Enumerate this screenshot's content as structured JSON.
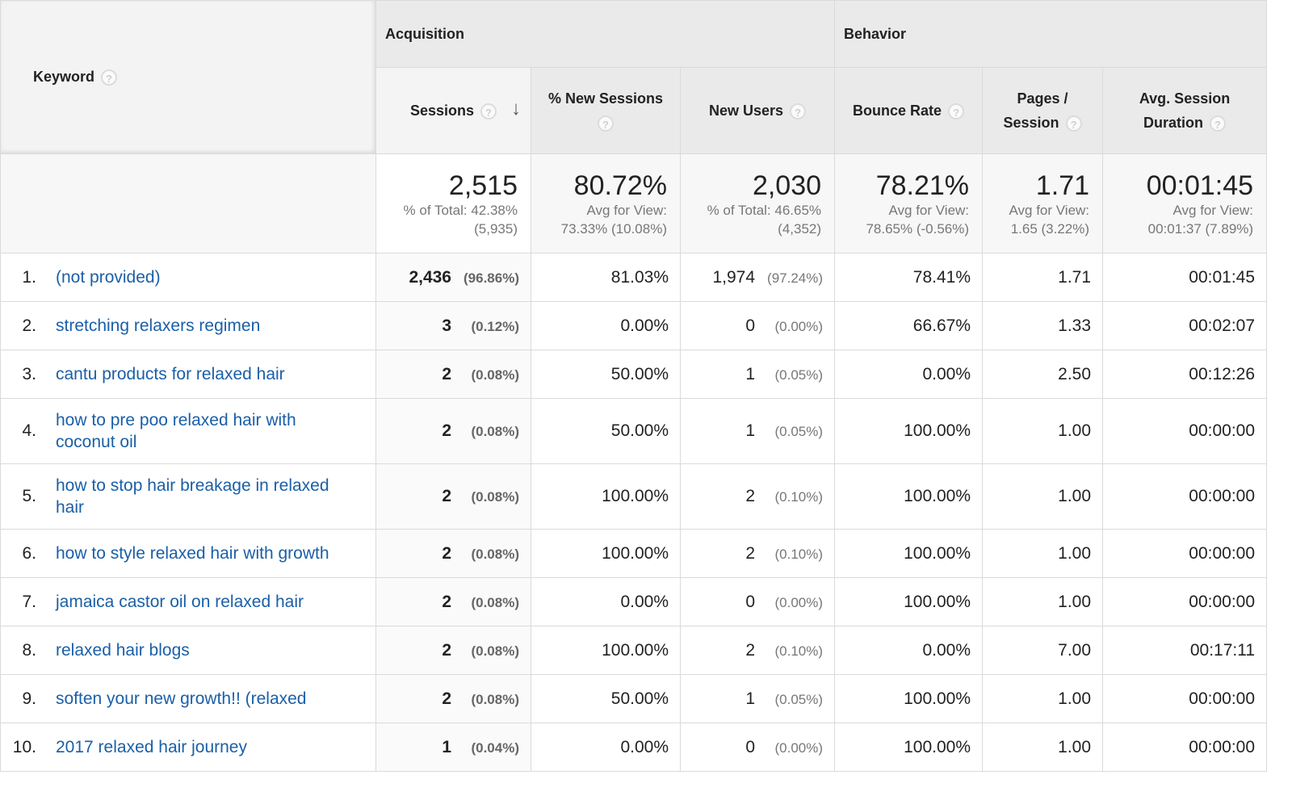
{
  "headers": {
    "keyword": "Keyword",
    "acquisition": "Acquisition",
    "behavior": "Behavior",
    "sessions": "Sessions",
    "new_sessions": "% New Sessions",
    "new_users": "New Users",
    "bounce_rate": "Bounce Rate",
    "pages_session_line1": "Pages /",
    "pages_session_line2": "Session",
    "avg_duration_line1": "Avg. Session",
    "avg_duration_line2": "Duration",
    "help_glyph": "?",
    "sort_glyph": "↓"
  },
  "totals": {
    "sessions": {
      "value": "2,515",
      "sub1": "% of Total: 42.38%",
      "sub2": "(5,935)"
    },
    "new_sessions": {
      "value": "80.72%",
      "sub1": "Avg for View:",
      "sub2": "73.33% (10.08%)"
    },
    "new_users": {
      "value": "2,030",
      "sub1": "% of Total: 46.65%",
      "sub2": "(4,352)"
    },
    "bounce_rate": {
      "value": "78.21%",
      "sub1": "Avg for View:",
      "sub2": "78.65% (-0.56%)"
    },
    "pages_session": {
      "value": "1.71",
      "sub1": "Avg for View:",
      "sub2": "1.65 (3.22%)"
    },
    "avg_duration": {
      "value": "00:01:45",
      "sub1": "Avg for View:",
      "sub2": "00:01:37 (7.89%)"
    }
  },
  "rows": [
    {
      "num": "1.",
      "keyword": "(not provided)",
      "sessions": "2,436",
      "sessions_pct": "(96.86%)",
      "new_sessions": "81.03%",
      "new_users": "1,974",
      "new_users_pct": "(97.24%)",
      "bounce_rate": "78.41%",
      "pages_session": "1.71",
      "avg_duration": "00:01:45"
    },
    {
      "num": "2.",
      "keyword": "stretching relaxers regimen",
      "sessions": "3",
      "sessions_pct": "(0.12%)",
      "new_sessions": "0.00%",
      "new_users": "0",
      "new_users_pct": "(0.00%)",
      "bounce_rate": "66.67%",
      "pages_session": "1.33",
      "avg_duration": "00:02:07"
    },
    {
      "num": "3.",
      "keyword": "cantu products for relaxed hair",
      "sessions": "2",
      "sessions_pct": "(0.08%)",
      "new_sessions": "50.00%",
      "new_users": "1",
      "new_users_pct": "(0.05%)",
      "bounce_rate": "0.00%",
      "pages_session": "2.50",
      "avg_duration": "00:12:26"
    },
    {
      "num": "4.",
      "keyword": "how to pre poo relaxed hair with coconut oil",
      "sessions": "2",
      "sessions_pct": "(0.08%)",
      "new_sessions": "50.00%",
      "new_users": "1",
      "new_users_pct": "(0.05%)",
      "bounce_rate": "100.00%",
      "pages_session": "1.00",
      "avg_duration": "00:00:00"
    },
    {
      "num": "5.",
      "keyword": "how to stop hair breakage in relaxed hair",
      "sessions": "2",
      "sessions_pct": "(0.08%)",
      "new_sessions": "100.00%",
      "new_users": "2",
      "new_users_pct": "(0.10%)",
      "bounce_rate": "100.00%",
      "pages_session": "1.00",
      "avg_duration": "00:00:00"
    },
    {
      "num": "6.",
      "keyword": "how to style relaxed hair with growth",
      "sessions": "2",
      "sessions_pct": "(0.08%)",
      "new_sessions": "100.00%",
      "new_users": "2",
      "new_users_pct": "(0.10%)",
      "bounce_rate": "100.00%",
      "pages_session": "1.00",
      "avg_duration": "00:00:00"
    },
    {
      "num": "7.",
      "keyword": "jamaica castor oil on relaxed hair",
      "sessions": "2",
      "sessions_pct": "(0.08%)",
      "new_sessions": "0.00%",
      "new_users": "0",
      "new_users_pct": "(0.00%)",
      "bounce_rate": "100.00%",
      "pages_session": "1.00",
      "avg_duration": "00:00:00"
    },
    {
      "num": "8.",
      "keyword": "relaxed hair blogs",
      "sessions": "2",
      "sessions_pct": "(0.08%)",
      "new_sessions": "100.00%",
      "new_users": "2",
      "new_users_pct": "(0.10%)",
      "bounce_rate": "0.00%",
      "pages_session": "7.00",
      "avg_duration": "00:17:11"
    },
    {
      "num": "9.",
      "keyword": "soften your new growth!! (relaxed",
      "sessions": "2",
      "sessions_pct": "(0.08%)",
      "new_sessions": "50.00%",
      "new_users": "1",
      "new_users_pct": "(0.05%)",
      "bounce_rate": "100.00%",
      "pages_session": "1.00",
      "avg_duration": "00:00:00"
    },
    {
      "num": "10.",
      "keyword": "2017 relaxed hair journey",
      "sessions": "1",
      "sessions_pct": "(0.04%)",
      "new_sessions": "0.00%",
      "new_users": "0",
      "new_users_pct": "(0.00%)",
      "bounce_rate": "100.00%",
      "pages_session": "1.00",
      "avg_duration": "00:00:00"
    }
  ]
}
